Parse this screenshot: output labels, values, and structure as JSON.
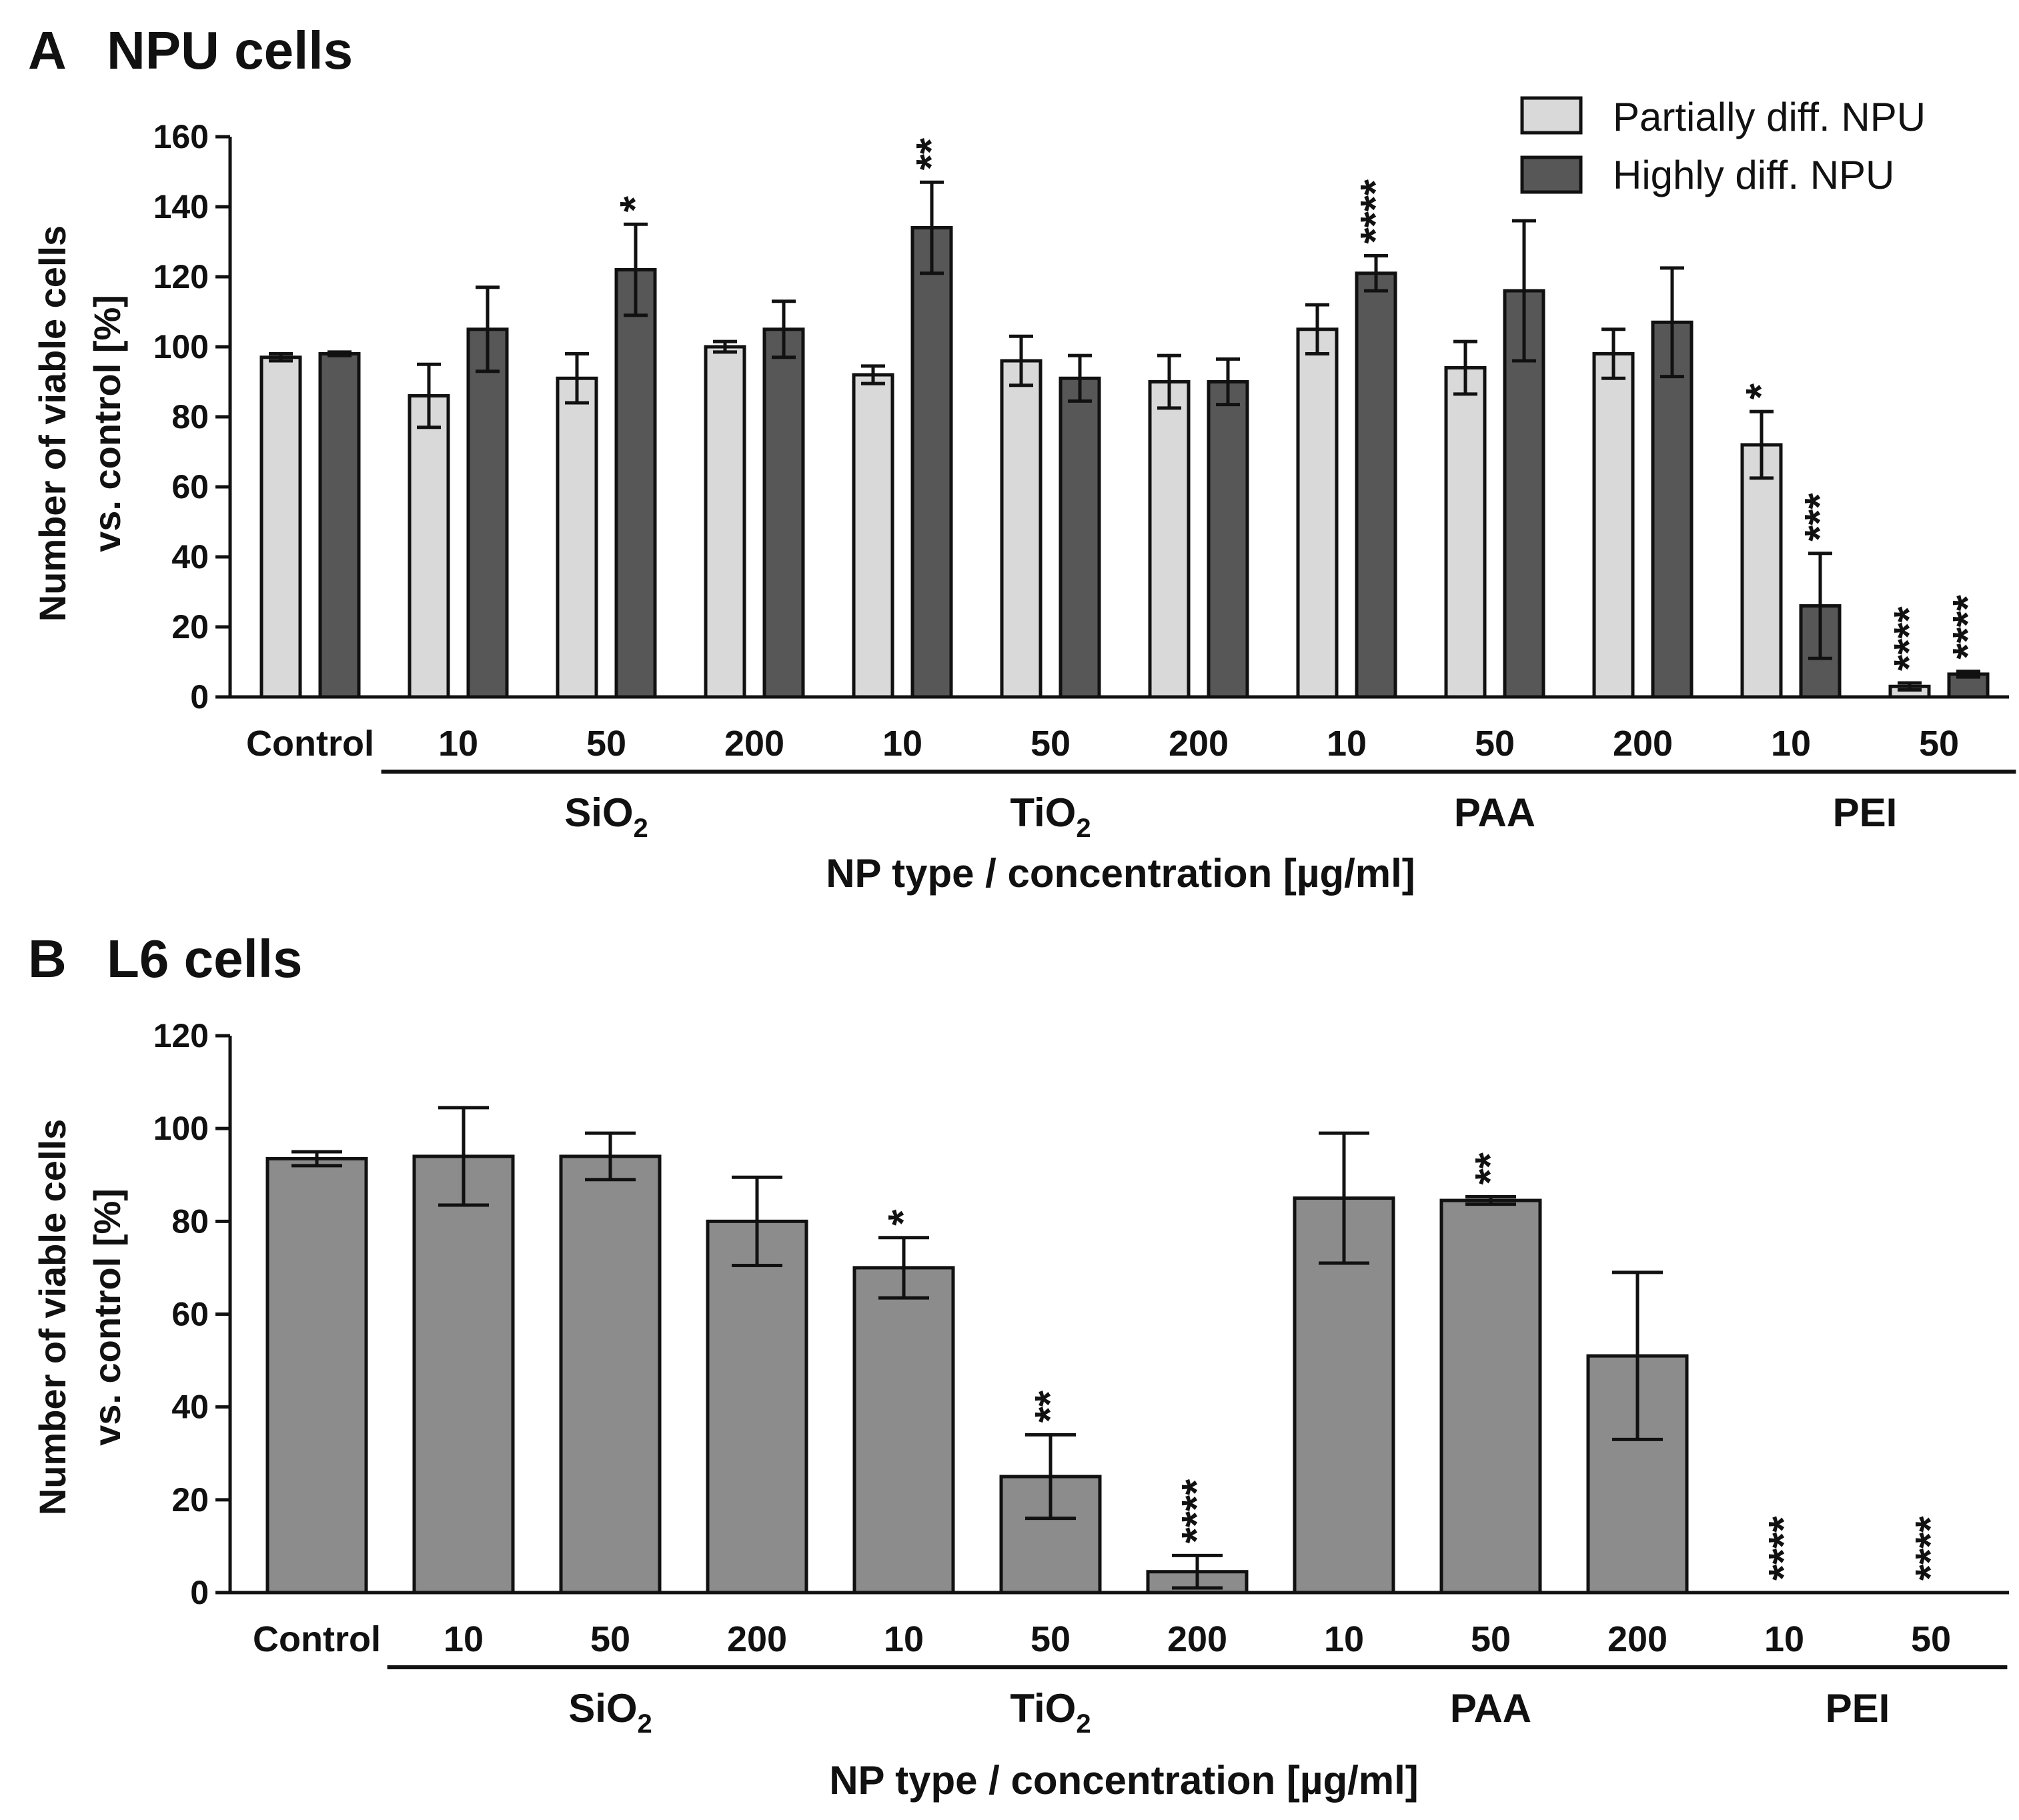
{
  "colors": {
    "light_bar": "#d9d9d9",
    "dark_bar": "#575757",
    "medium_bar": "#8c8c8c",
    "axis": "#111111"
  },
  "chart_data": [
    {
      "panel_letter": "A",
      "title": "NPU cells",
      "type": "bar",
      "ylabel_line1": "Number of viable cells",
      "ylabel_line2": "vs. control [%]",
      "xlabel": "NP type / concentration [µg/ml]",
      "ylim": [
        0,
        160
      ],
      "yticks": [
        0,
        20,
        40,
        60,
        80,
        100,
        120,
        140,
        160
      ],
      "categories": [
        "Control",
        "10",
        "50",
        "200",
        "10",
        "50",
        "200",
        "10",
        "50",
        "200",
        "10",
        "50"
      ],
      "groups": [
        {
          "label": "SiO",
          "sub": "2",
          "start": 1,
          "end": 3
        },
        {
          "label": "TiO",
          "sub": "2",
          "start": 4,
          "end": 6
        },
        {
          "label": "PAA",
          "sub": "",
          "start": 7,
          "end": 9
        },
        {
          "label": "PEI",
          "sub": "",
          "start": 10,
          "end": 11
        }
      ],
      "legend": {
        "position": "top-right"
      },
      "series": [
        {
          "name": "Partially diff. NPU",
          "color_key": "light_bar",
          "values": [
            97,
            86,
            91,
            100,
            92,
            96,
            90,
            105,
            94,
            98,
            72,
            3
          ],
          "errors": [
            1,
            9,
            7,
            1.5,
            2.5,
            7,
            7.5,
            7,
            7.5,
            7,
            9.5,
            1
          ],
          "sig": [
            "",
            "",
            "",
            "",
            "",
            "",
            "",
            "",
            "",
            "",
            "*",
            "****"
          ]
        },
        {
          "name": "Highly diff. NPU",
          "color_key": "dark_bar",
          "values": [
            98,
            105,
            122,
            105,
            134,
            91,
            90,
            121,
            116,
            107,
            26,
            6.5
          ],
          "errors": [
            0.5,
            12,
            13,
            8,
            13,
            6.5,
            6.5,
            5,
            20,
            15.5,
            15,
            0.8
          ],
          "sig": [
            "",
            "",
            "*",
            "",
            "**",
            "",
            "",
            "****",
            "",
            "",
            "***",
            "****"
          ]
        }
      ]
    },
    {
      "panel_letter": "B",
      "title": "L6 cells",
      "type": "bar",
      "ylabel_line1": "Number of viable cells",
      "ylabel_line2": "vs. control [%]",
      "xlabel": "NP type / concentration [µg/ml]",
      "ylim": [
        0,
        120
      ],
      "yticks": [
        0,
        20,
        40,
        60,
        80,
        100,
        120
      ],
      "categories": [
        "Control",
        "10",
        "50",
        "200",
        "10",
        "50",
        "200",
        "10",
        "50",
        "200",
        "10",
        "50"
      ],
      "groups": [
        {
          "label": "SiO",
          "sub": "2",
          "start": 1,
          "end": 3
        },
        {
          "label": "TiO",
          "sub": "2",
          "start": 4,
          "end": 6
        },
        {
          "label": "PAA",
          "sub": "",
          "start": 7,
          "end": 9
        },
        {
          "label": "PEI",
          "sub": "",
          "start": 10,
          "end": 11
        }
      ],
      "series": [
        {
          "name": "L6",
          "color_key": "medium_bar",
          "values": [
            93.5,
            94,
            94,
            80,
            70,
            25,
            4.5,
            85,
            84.5,
            51,
            0,
            0
          ],
          "errors": [
            1.5,
            10.5,
            5,
            9.5,
            6.5,
            9,
            3.5,
            14,
            0.8,
            18,
            0,
            0
          ],
          "sig": [
            "",
            "",
            "",
            "",
            "*",
            "**",
            "****",
            "",
            "**",
            "",
            "****",
            "****"
          ]
        }
      ]
    }
  ]
}
